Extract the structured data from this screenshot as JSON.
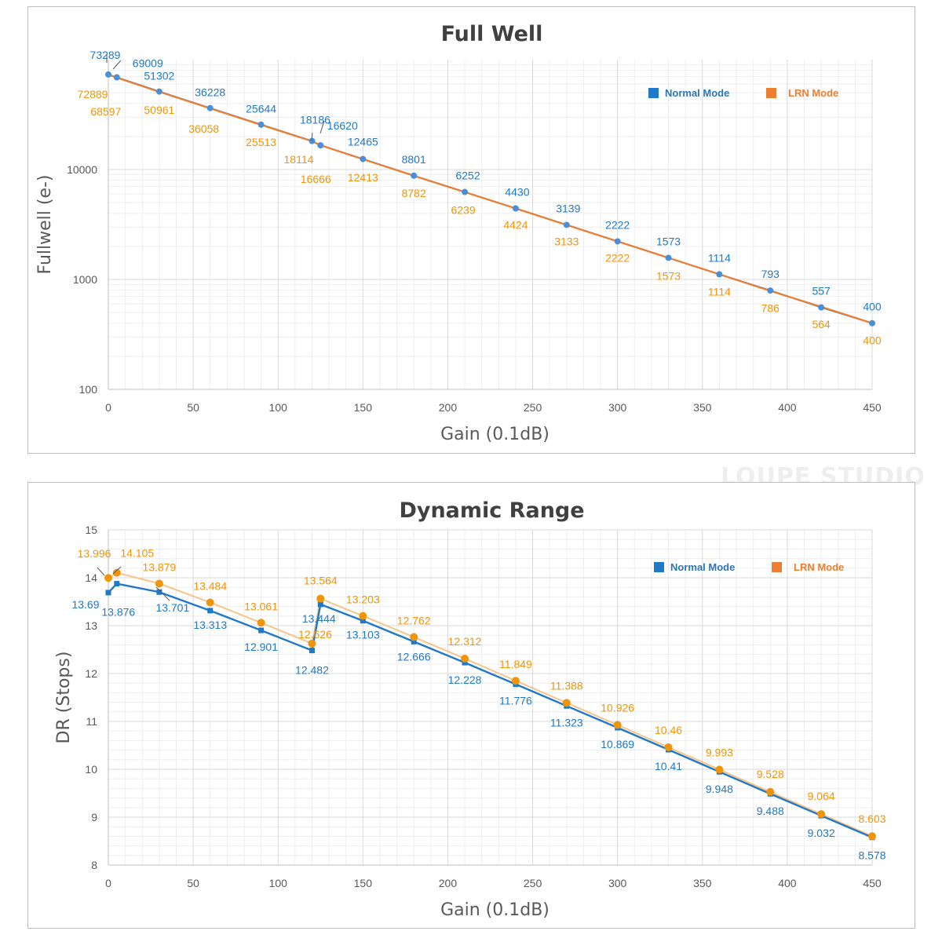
{
  "watermark": "LOUPE STUDIO",
  "colors": {
    "normal": "#1f78c8",
    "lrn": "#f0940a",
    "lrn_line": "#ed7d31",
    "grid": "#d9d9d9"
  },
  "chart_data": [
    {
      "type": "line",
      "scale": "log",
      "title": "Full Well",
      "xlabel": "Gain (0.1dB)",
      "ylabel": "Fullwell (e-)",
      "xlim": [
        0,
        450
      ],
      "ylim": [
        100,
        100000
      ],
      "xticks": [
        0,
        50,
        100,
        150,
        200,
        250,
        300,
        350,
        400,
        450
      ],
      "yticks": [
        100,
        1000,
        10000
      ],
      "legend": [
        "Normal Mode",
        "LRN Mode"
      ],
      "legend_position": "top-right",
      "x": [
        0,
        5,
        30,
        60,
        90,
        120,
        125,
        150,
        180,
        210,
        240,
        270,
        300,
        330,
        360,
        390,
        420,
        450
      ],
      "series": [
        {
          "name": "Normal Mode",
          "values": [
            73289,
            69009,
            51302,
            36228,
            25644,
            18186,
            16620,
            12465,
            8801,
            6252,
            4430,
            3139,
            2222,
            1573,
            1114,
            793,
            557,
            400
          ]
        },
        {
          "name": "LRN Mode",
          "values": [
            72889,
            68597,
            50961,
            36058,
            25513,
            18114,
            16666,
            12413,
            8782,
            6239,
            4424,
            3133,
            2222,
            1573,
            1114,
            786,
            564,
            400
          ]
        }
      ]
    },
    {
      "type": "line",
      "scale": "linear",
      "title": "Dynamic Range",
      "xlabel": "Gain (0.1dB)",
      "ylabel": "DR (Stops)",
      "xlim": [
        0,
        450
      ],
      "ylim": [
        8,
        15
      ],
      "xticks": [
        0,
        50,
        100,
        150,
        200,
        250,
        300,
        350,
        400,
        450
      ],
      "yticks": [
        8,
        9,
        10,
        11,
        12,
        13,
        14,
        15
      ],
      "legend": [
        "Normal Mode",
        "LRN Mode"
      ],
      "legend_position": "top-right",
      "x": [
        0,
        5,
        30,
        60,
        90,
        120,
        125,
        150,
        180,
        210,
        240,
        270,
        300,
        330,
        360,
        390,
        420,
        450
      ],
      "series": [
        {
          "name": "Normal Mode",
          "values": [
            13.69,
            13.876,
            13.701,
            13.313,
            12.901,
            12.482,
            13.444,
            13.103,
            12.666,
            12.228,
            11.776,
            11.323,
            10.869,
            10.41,
            9.948,
            9.488,
            9.032,
            8.578
          ]
        },
        {
          "name": "LRN Mode",
          "values": [
            13.996,
            14.105,
            13.879,
            13.484,
            13.061,
            12.626,
            13.564,
            13.203,
            12.762,
            12.312,
            11.849,
            11.388,
            10.926,
            10.46,
            9.993,
            9.528,
            9.064,
            8.603
          ]
        }
      ]
    }
  ]
}
